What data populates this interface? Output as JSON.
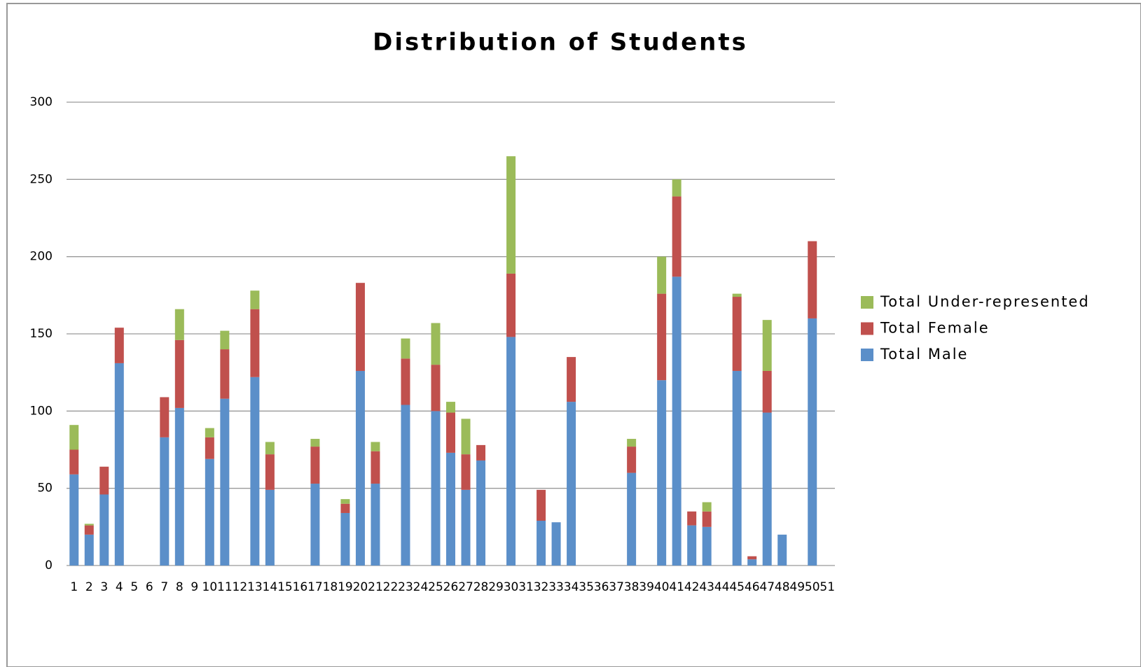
{
  "chart_data": {
    "type": "stacked_bar",
    "title": "Distribution of Students",
    "categories": [
      "1",
      "2",
      "3",
      "4",
      "5",
      "6",
      "7",
      "8",
      "9",
      "10",
      "11",
      "12",
      "13",
      "14",
      "15",
      "16",
      "17",
      "18",
      "19",
      "20",
      "21",
      "22",
      "23",
      "24",
      "25",
      "26",
      "27",
      "28",
      "29",
      "30",
      "31",
      "32",
      "33",
      "34",
      "35",
      "36",
      "37",
      "38",
      "39",
      "40",
      "41",
      "42",
      "43",
      "44",
      "45",
      "46",
      "47",
      "48",
      "49",
      "50",
      "51"
    ],
    "series": [
      {
        "name": "Total Male",
        "color": "#5b8fc9",
        "values": [
          59,
          20,
          46,
          131,
          0,
          0,
          83,
          102,
          0,
          69,
          108,
          0,
          122,
          49,
          0,
          0,
          53,
          0,
          34,
          126,
          53,
          0,
          104,
          0,
          100,
          73,
          49,
          68,
          0,
          148,
          0,
          29,
          28,
          106,
          0,
          0,
          0,
          60,
          0,
          120,
          187,
          26,
          25,
          0,
          126,
          4,
          99,
          20,
          0,
          160,
          0
        ]
      },
      {
        "name": "Total Female",
        "color": "#c0504d",
        "values": [
          16,
          6,
          18,
          23,
          0,
          0,
          26,
          44,
          0,
          14,
          32,
          0,
          44,
          23,
          0,
          0,
          24,
          0,
          6,
          57,
          21,
          0,
          30,
          0,
          30,
          26,
          23,
          10,
          0,
          41,
          0,
          20,
          0,
          29,
          0,
          0,
          0,
          17,
          0,
          56,
          52,
          9,
          10,
          0,
          48,
          2,
          27,
          0,
          0,
          50,
          0
        ]
      },
      {
        "name": "Total Under-represented",
        "color": "#9bbb59",
        "values": [
          16,
          1,
          0,
          0,
          0,
          0,
          0,
          20,
          0,
          6,
          12,
          0,
          12,
          8,
          0,
          0,
          5,
          0,
          3,
          0,
          6,
          0,
          13,
          0,
          27,
          7,
          23,
          0,
          0,
          76,
          0,
          0,
          0,
          0,
          0,
          0,
          0,
          5,
          0,
          24,
          11,
          0,
          6,
          0,
          2,
          0,
          33,
          0,
          0,
          0,
          0
        ]
      }
    ],
    "ylim": [
      0,
      300
    ],
    "yticks": [
      0,
      50,
      100,
      150,
      200,
      250,
      300
    ],
    "grid": true,
    "legend": "right"
  }
}
